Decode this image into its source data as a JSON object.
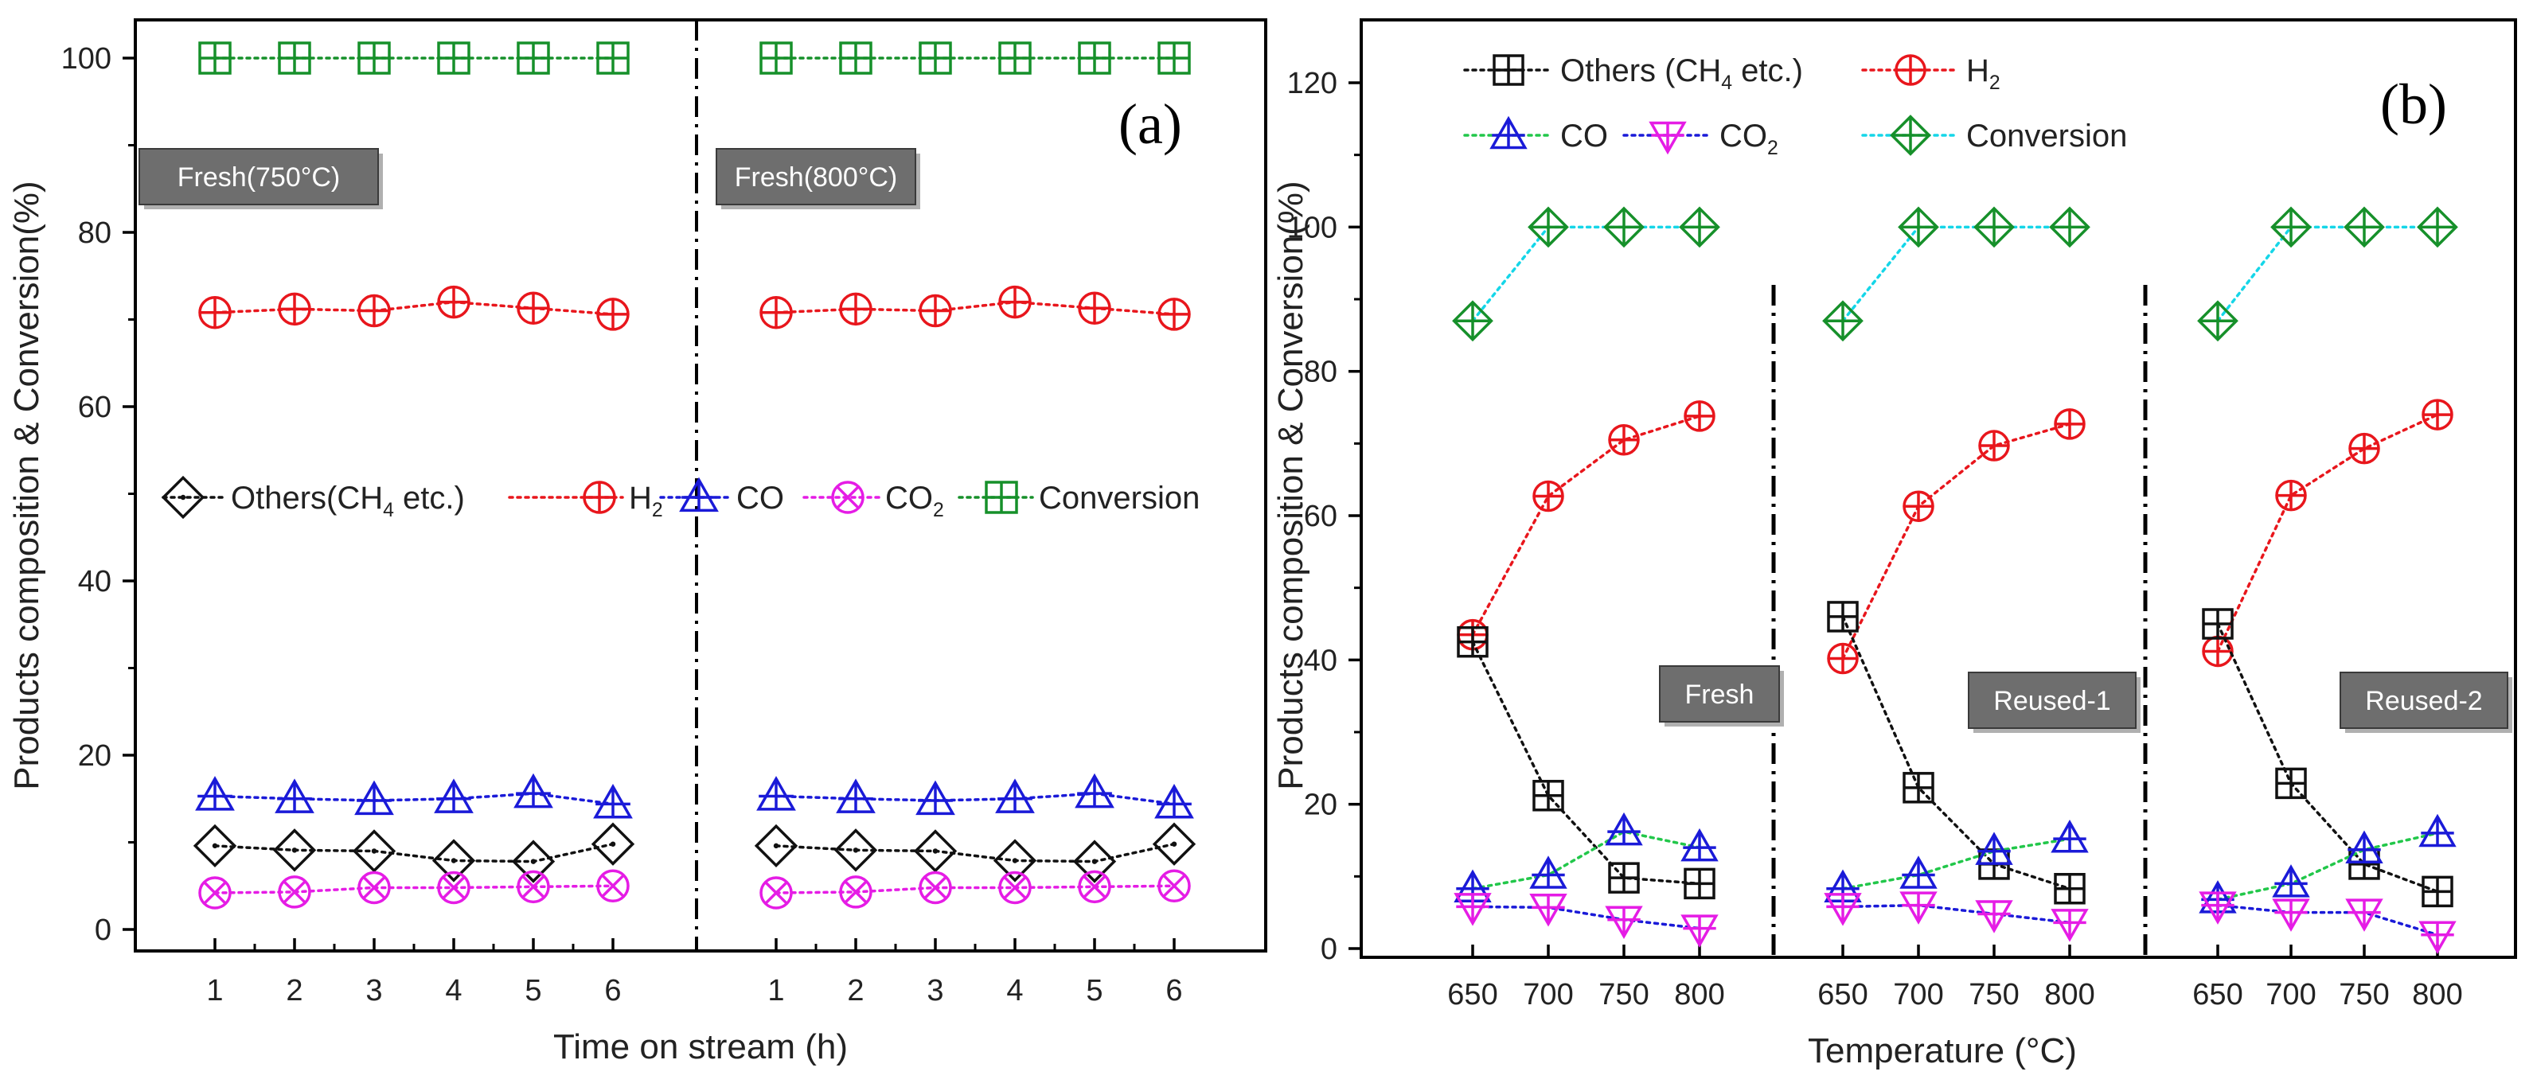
{
  "colors": {
    "others": "#111111",
    "h2": "#e8161c",
    "co": "#1a1ad8",
    "co2": "#e51ce5",
    "conversion": "#16902a",
    "conv_line_b": "#15d6e8",
    "co_line_b": "#22c74a",
    "co2_line_b": "#1a1ad8"
  },
  "chart_data": [
    {
      "type": "line",
      "panel_label": "(a)",
      "ylabel": "Products composition & Conversion(%)",
      "xlabel": "Time on stream (h)",
      "ylim": [
        0,
        100
      ],
      "yticks": [
        0,
        20,
        40,
        60,
        80,
        100
      ],
      "x": [
        1,
        2,
        3,
        4,
        5,
        6
      ],
      "grid": false,
      "legend": {
        "placement": "center",
        "entries": [
          {
            "key": "others",
            "pre": "Others(CH",
            "sub": "4",
            "post": " etc.)",
            "marker": "diamond"
          },
          {
            "key": "h2",
            "pre": "H",
            "sub": "2",
            "post": "",
            "marker": "circle-plus"
          },
          {
            "key": "co",
            "pre": "CO",
            "sub": "",
            "post": "",
            "marker": "triangle"
          },
          {
            "key": "co2",
            "pre": "CO",
            "sub": "2",
            "post": "",
            "marker": "circle-x"
          },
          {
            "key": "conversion",
            "pre": "Conversion",
            "sub": "",
            "post": "",
            "marker": "square-plus"
          }
        ]
      },
      "groups": [
        {
          "label": "Fresh(750°C)",
          "series": [
            {
              "key": "conversion",
              "name": "Conversion",
              "values": [
                100,
                100,
                100,
                100,
                100,
                100
              ]
            },
            {
              "key": "h2",
              "name": "H2",
              "values": [
                70.8,
                71.2,
                71.0,
                72.0,
                71.3,
                70.6
              ]
            },
            {
              "key": "co",
              "name": "CO",
              "values": [
                15.3,
                15.0,
                14.8,
                15.0,
                15.6,
                14.4
              ]
            },
            {
              "key": "others",
              "name": "Others(CH4 etc.)",
              "values": [
                9.6,
                9.1,
                9.0,
                7.9,
                7.8,
                9.8
              ]
            },
            {
              "key": "co2",
              "name": "CO2",
              "values": [
                4.2,
                4.3,
                4.8,
                4.8,
                4.9,
                5.0
              ]
            }
          ]
        },
        {
          "label": "Fresh(800°C)",
          "series": [
            {
              "key": "conversion",
              "name": "Conversion",
              "values": [
                100,
                100,
                100,
                100,
                100,
                100
              ]
            },
            {
              "key": "h2",
              "name": "H2",
              "values": [
                70.8,
                71.2,
                71.0,
                72.0,
                71.3,
                70.6
              ]
            },
            {
              "key": "co",
              "name": "CO",
              "values": [
                15.3,
                15.0,
                14.8,
                15.0,
                15.6,
                14.4
              ]
            },
            {
              "key": "others",
              "name": "Others(CH4 etc.)",
              "values": [
                9.6,
                9.1,
                9.0,
                7.9,
                7.8,
                9.8
              ]
            },
            {
              "key": "co2",
              "name": "CO2",
              "values": [
                4.2,
                4.3,
                4.8,
                4.8,
                4.9,
                5.0
              ]
            }
          ]
        }
      ]
    },
    {
      "type": "line",
      "panel_label": "(b)",
      "ylabel": "Products composition & Conversion(%)",
      "xlabel": "Temperature (°C)",
      "ylim": [
        0,
        125
      ],
      "yticks": [
        0,
        20,
        40,
        60,
        80,
        100,
        120
      ],
      "x": [
        650,
        700,
        750,
        800
      ],
      "grid": false,
      "legend": {
        "placement": "top-left",
        "entries": [
          {
            "key": "others",
            "pre": "Others (CH",
            "sub": "4",
            "post": " etc.)",
            "marker": "square-plus"
          },
          {
            "key": "h2",
            "pre": "H",
            "sub": "2",
            "post": "",
            "marker": "circle-plus"
          },
          {
            "key": "co",
            "pre": "CO",
            "sub": "",
            "post": "",
            "marker": "triangle"
          },
          {
            "key": "co2",
            "pre": "CO",
            "sub": "2",
            "post": "",
            "marker": "triangle-down"
          },
          {
            "key": "conversion",
            "pre": "Conversion",
            "sub": "",
            "post": "",
            "marker": "diamond-plus"
          }
        ]
      },
      "groups": [
        {
          "label": "Fresh",
          "series": [
            {
              "key": "conversion",
              "name": "Conversion",
              "values": [
                87,
                100,
                100,
                100
              ]
            },
            {
              "key": "h2",
              "name": "H2",
              "values": [
                43.5,
                62.7,
                70.5,
                73.8
              ]
            },
            {
              "key": "others",
              "name": "Others (CH4 etc.)",
              "values": [
                42.5,
                21.2,
                9.8,
                9.0
              ]
            },
            {
              "key": "co",
              "name": "CO",
              "values": [
                8.3,
                10.2,
                16.2,
                14.0
              ]
            },
            {
              "key": "co2",
              "name": "CO2",
              "values": [
                5.8,
                5.7,
                4.0,
                2.8
              ]
            }
          ]
        },
        {
          "label": "Reused-1",
          "series": [
            {
              "key": "conversion",
              "name": "Conversion",
              "values": [
                87,
                100,
                100,
                100
              ]
            },
            {
              "key": "h2",
              "name": "H2",
              "values": [
                40.2,
                61.3,
                69.7,
                72.7
              ]
            },
            {
              "key": "others",
              "name": "Others (CH4 etc.)",
              "values": [
                46.0,
                22.3,
                11.7,
                8.3
              ]
            },
            {
              "key": "co",
              "name": "CO",
              "values": [
                8.3,
                10.2,
                13.5,
                15.2
              ]
            },
            {
              "key": "co2",
              "name": "CO2",
              "values": [
                5.8,
                6.0,
                4.8,
                3.6
              ]
            }
          ]
        },
        {
          "label": "Reused-2",
          "series": [
            {
              "key": "conversion",
              "name": "Conversion",
              "values": [
                87,
                100,
                100,
                100
              ]
            },
            {
              "key": "h2",
              "name": "H2",
              "values": [
                41.2,
                62.8,
                69.3,
                74.0
              ]
            },
            {
              "key": "others",
              "name": "Others (CH4 etc.)",
              "values": [
                45.0,
                22.9,
                11.7,
                7.9
              ]
            },
            {
              "key": "co",
              "name": "CO",
              "values": [
                6.8,
                9.0,
                13.7,
                16.0
              ]
            },
            {
              "key": "co2",
              "name": "CO2",
              "values": [
                6.0,
                5.0,
                5.0,
                1.9
              ]
            }
          ]
        }
      ]
    }
  ]
}
